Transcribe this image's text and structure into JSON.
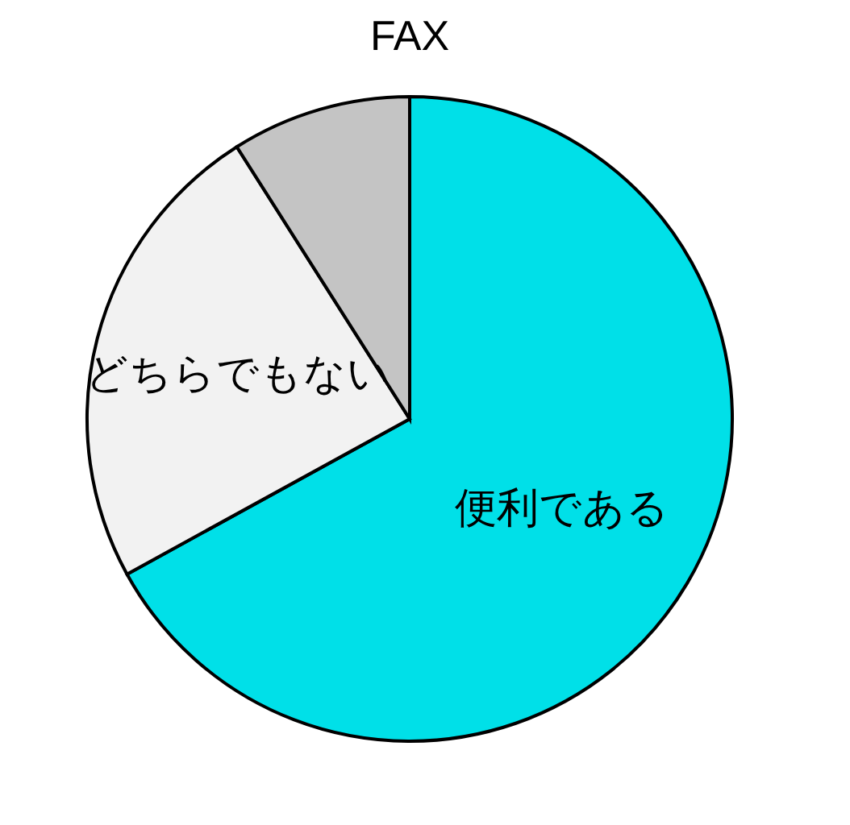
{
  "chart_data": {
    "type": "pie",
    "title": "FAX",
    "categories": [
      "便利である",
      "どちらでもない",
      null
    ],
    "values": [
      67,
      24,
      9
    ],
    "colors": [
      "#00e0e8",
      "#f2f2f2",
      "#c4c4c4"
    ],
    "legend": false
  }
}
